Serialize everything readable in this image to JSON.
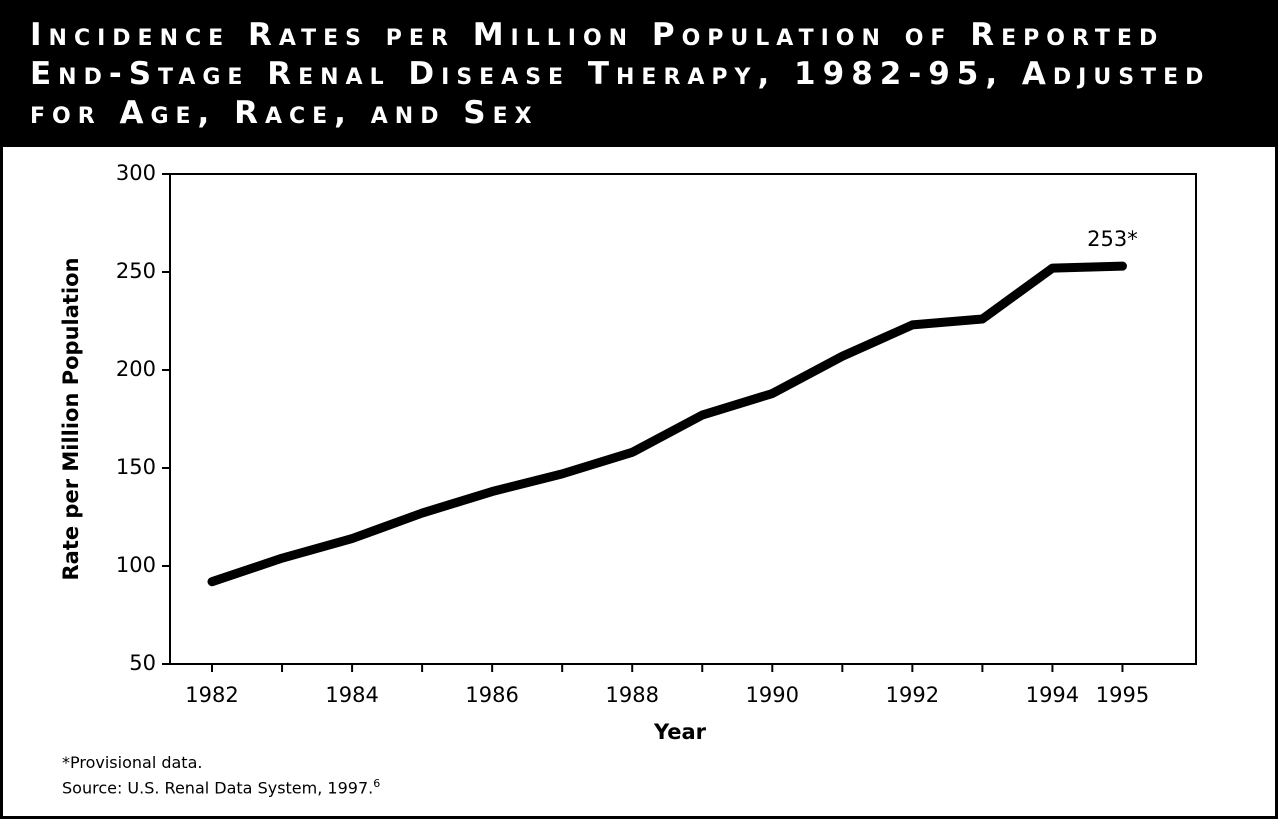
{
  "chart_data": {
    "type": "line",
    "title": "Incidence Rates per Million Population of Reported End-Stage Renal Disease Therapy, 1982-95, Adjusted for Age, Race, and Sex",
    "x_label": "Year",
    "y_label": "Rate per Million Population",
    "x": [
      1982,
      1983,
      1984,
      1985,
      1986,
      1987,
      1988,
      1989,
      1990,
      1991,
      1992,
      1993,
      1994,
      1995
    ],
    "values": [
      92,
      104,
      114,
      127,
      138,
      147,
      158,
      177,
      188,
      207,
      223,
      226,
      252,
      253
    ],
    "value_labels": [
      null,
      null,
      null,
      null,
      null,
      null,
      null,
      null,
      null,
      null,
      null,
      null,
      null,
      "253*"
    ],
    "color": "#000000",
    "xlim": [
      1981.4,
      1996.05
    ],
    "ylim": [
      50,
      300
    ],
    "xticks": [
      1982,
      1984,
      1986,
      1988,
      1990,
      1992,
      1994,
      1995
    ],
    "xminorticks": [
      1983,
      1985,
      1987,
      1989,
      1991,
      1993
    ],
    "yticks": [
      50,
      100,
      150,
      200,
      250,
      300
    ],
    "footnote": "*Provisional data.",
    "source": "Source: U.S. Renal Data System, 1997.",
    "source_ref": "6"
  }
}
